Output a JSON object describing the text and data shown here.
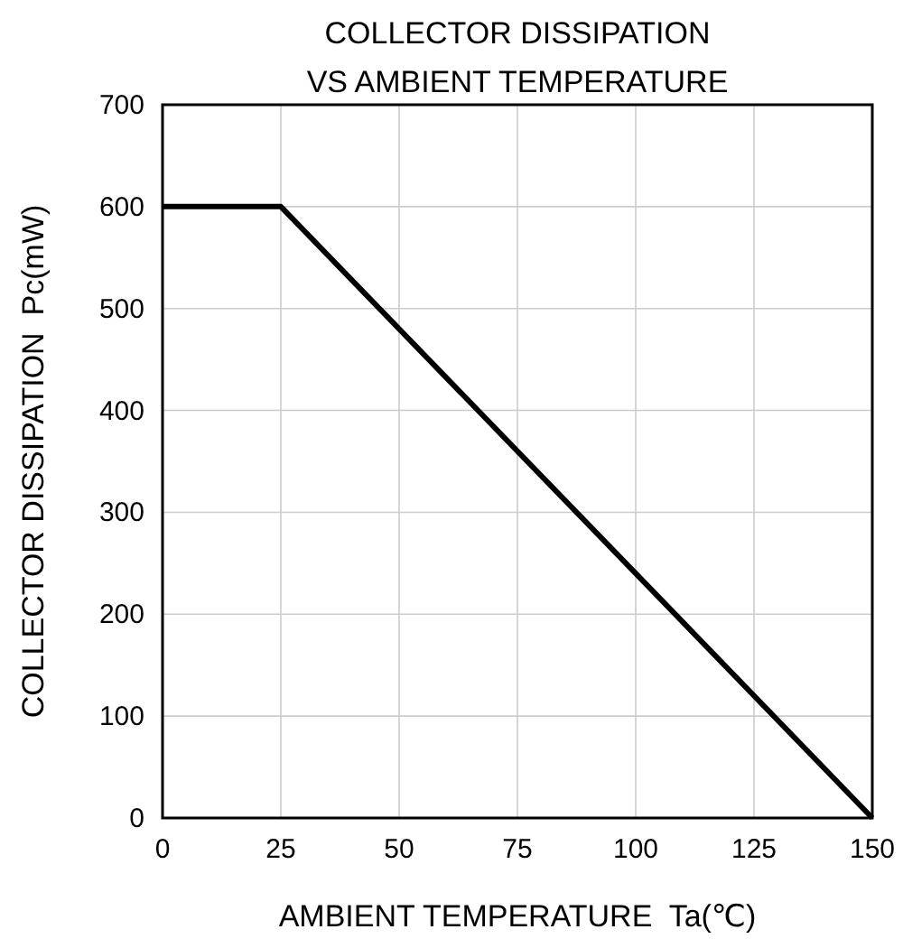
{
  "chart_data": {
    "type": "line",
    "title": "COLLECTOR DISSIPATION\nVS AMBIENT TEMPERATURE",
    "xlabel": "AMBIENT TEMPERATURE  Ta(℃)",
    "ylabel": "COLLECTOR DISSIPATION  Pc(mW)",
    "x": [
      0,
      25,
      150
    ],
    "series": [
      {
        "color": "#000000",
        "values": [
          600,
          600,
          0
        ]
      }
    ],
    "xlim": [
      0,
      150
    ],
    "xticks": [
      0,
      25,
      50,
      75,
      100,
      125,
      150
    ],
    "ylim": [
      0,
      700
    ],
    "yticks": [
      0,
      100,
      200,
      300,
      400,
      500,
      600,
      700
    ],
    "grid": true,
    "marker": "none",
    "line_style": "solid"
  }
}
